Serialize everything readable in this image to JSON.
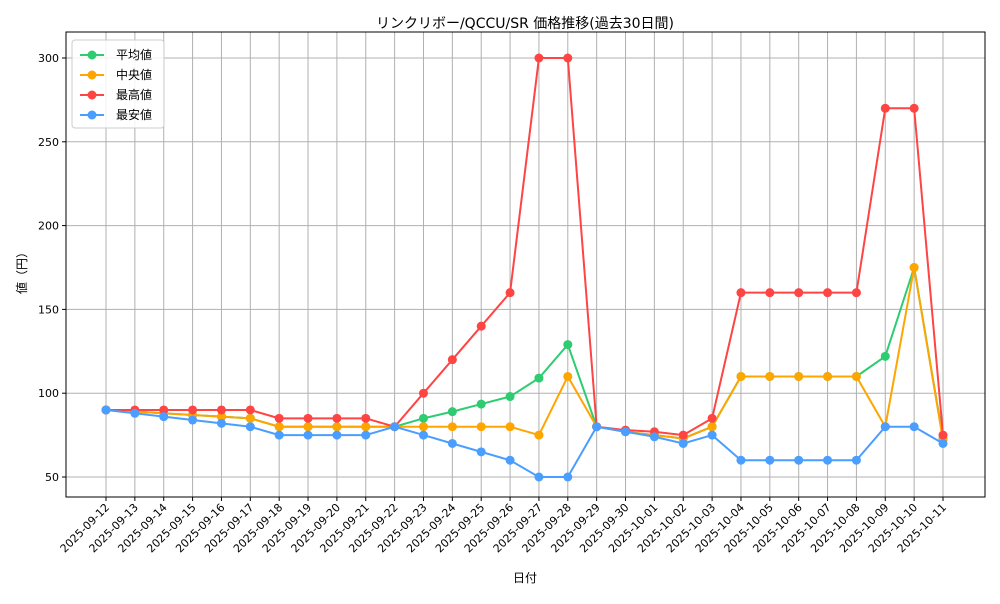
{
  "chart_data": {
    "type": "line",
    "title": "リンクリボー/QCCU/SR 価格推移(過去30日間)",
    "xlabel": "日付",
    "ylabel": "値（円）",
    "ylim": [
      38,
      312
    ],
    "yticks": [
      50,
      100,
      150,
      200,
      250,
      300
    ],
    "grid": true,
    "legend_position": "top-left",
    "x": [
      "2025-09-12",
      "2025-09-13",
      "2025-09-14",
      "2025-09-15",
      "2025-09-16",
      "2025-09-17",
      "2025-09-18",
      "2025-09-19",
      "2025-09-20",
      "2025-09-21",
      "2025-09-22",
      "2025-09-23",
      "2025-09-24",
      "2025-09-25",
      "2025-09-26",
      "2025-09-27",
      "2025-09-28",
      "2025-09-29",
      "2025-09-30",
      "2025-10-01",
      "2025-10-02",
      "2025-10-03",
      "2025-10-04",
      "2025-10-05",
      "2025-10-06",
      "2025-10-07",
      "2025-10-08",
      "2025-10-09",
      "2025-10-10",
      "2025-10-11"
    ],
    "series": [
      {
        "name": "平均値",
        "color": "#2ecc71",
        "values": [
          90,
          89,
          88,
          87,
          86,
          85,
          80,
          80,
          80,
          80,
          80,
          85,
          89,
          93.5,
          98,
          109,
          129,
          80,
          77,
          75,
          73,
          80,
          110,
          110,
          110,
          110,
          110,
          122,
          175,
          73
        ]
      },
      {
        "name": "中央値",
        "color": "#ffa500",
        "values": [
          90,
          89,
          88,
          87,
          86,
          85,
          80,
          80,
          80,
          80,
          80,
          80,
          80,
          80,
          80,
          75,
          110,
          80,
          77,
          75,
          73,
          80,
          110,
          110,
          110,
          110,
          110,
          80,
          175,
          72
        ]
      },
      {
        "name": "最高値",
        "color": "#ff4444",
        "values": [
          90,
          90,
          90,
          90,
          90,
          90,
          85,
          85,
          85,
          85,
          80,
          100,
          120,
          140,
          160,
          300,
          300,
          80,
          78,
          77,
          75,
          85,
          160,
          160,
          160,
          160,
          160,
          270,
          270,
          75
        ]
      },
      {
        "name": "最安値",
        "color": "#4a9eff",
        "values": [
          90,
          88,
          86,
          84,
          82,
          80,
          75,
          75,
          75,
          75,
          80,
          75,
          70,
          65,
          60,
          50,
          50,
          80,
          77,
          74,
          70,
          75,
          60,
          60,
          60,
          60,
          60,
          80,
          80,
          70
        ]
      }
    ]
  }
}
